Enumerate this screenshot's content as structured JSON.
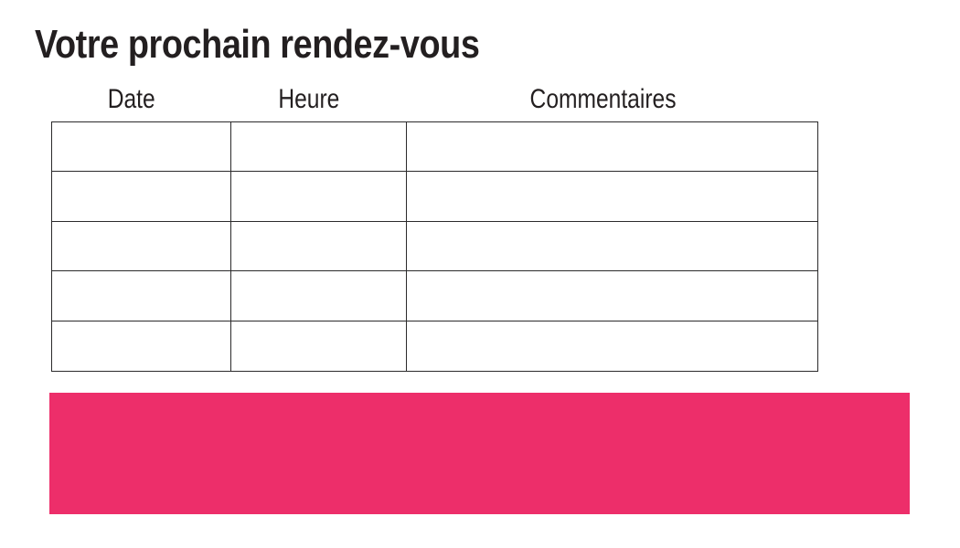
{
  "document": {
    "title": "Votre prochain rendez-vous"
  },
  "appointments_table": {
    "headers": [
      "Date",
      "Heure",
      "Commentaires"
    ],
    "row_count": 5,
    "rows": [
      [
        "",
        "",
        ""
      ],
      [
        "",
        "",
        ""
      ],
      [
        "",
        "",
        ""
      ],
      [
        "",
        "",
        ""
      ],
      [
        "",
        "",
        ""
      ]
    ]
  },
  "banner": {
    "label": "",
    "color": "#ed2e6a"
  },
  "colors": {
    "text": "#231f20",
    "table_border": "#2b2a2b",
    "background": "#ffffff"
  }
}
